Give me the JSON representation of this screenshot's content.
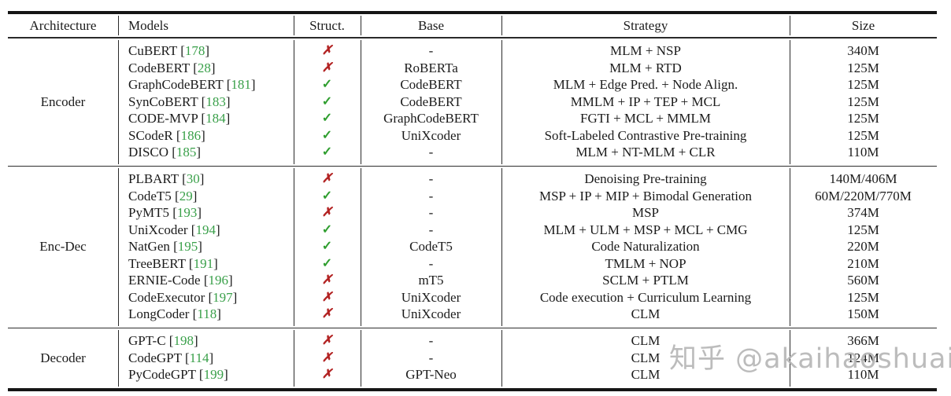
{
  "table": {
    "headers": {
      "architecture": "Architecture",
      "models": "Models",
      "struct": "Struct.",
      "base": "Base",
      "strategy": "Strategy",
      "size": "Size"
    },
    "sections": [
      {
        "architecture": "Encoder",
        "rows": [
          {
            "model": "CuBERT",
            "ref": "178",
            "struct": "✗",
            "base": "-",
            "strategy": "MLM + NSP",
            "size": "340M"
          },
          {
            "model": "CodeBERT",
            "ref": "28",
            "struct": "✗",
            "base": "RoBERTa",
            "strategy": "MLM + RTD",
            "size": "125M"
          },
          {
            "model": "GraphCodeBERT",
            "ref": "181",
            "struct": "✓",
            "base": "CodeBERT",
            "strategy": "MLM + Edge Pred. + Node Align.",
            "size": "125M"
          },
          {
            "model": "SynCoBERT",
            "ref": "183",
            "struct": "✓",
            "base": "CodeBERT",
            "strategy": "MMLM + IP + TEP + MCL",
            "size": "125M"
          },
          {
            "model": "CODE-MVP",
            "ref": "184",
            "struct": "✓",
            "base": "GraphCodeBERT",
            "strategy": "FGTI + MCL + MMLM",
            "size": "125M"
          },
          {
            "model": "SCodeR",
            "ref": "186",
            "struct": "✓",
            "base": "UniXcoder",
            "strategy": "Soft-Labeled Contrastive Pre-training",
            "size": "125M"
          },
          {
            "model": "DISCO",
            "ref": "185",
            "struct": "✓",
            "base": "-",
            "strategy": "MLM + NT-MLM + CLR",
            "size": "110M"
          }
        ]
      },
      {
        "architecture": "Enc-Dec",
        "rows": [
          {
            "model": "PLBART",
            "ref": "30",
            "struct": "✗",
            "base": "-",
            "strategy": "Denoising Pre-training",
            "size": "140M/406M"
          },
          {
            "model": "CodeT5",
            "ref": "29",
            "struct": "✓",
            "base": "-",
            "strategy": "MSP + IP + MIP + Bimodal Generation",
            "size": "60M/220M/770M"
          },
          {
            "model": "PyMT5",
            "ref": "193",
            "struct": "✗",
            "base": "-",
            "strategy": "MSP",
            "size": "374M"
          },
          {
            "model": "UniXcoder",
            "ref": "194",
            "struct": "✓",
            "base": "-",
            "strategy": "MLM + ULM + MSP + MCL + CMG",
            "size": "125M"
          },
          {
            "model": "NatGen",
            "ref": "195",
            "struct": "✓",
            "base": "CodeT5",
            "strategy": "Code Naturalization",
            "size": "220M"
          },
          {
            "model": "TreeBERT",
            "ref": "191",
            "struct": "✓",
            "base": "-",
            "strategy": "TMLM + NOP",
            "size": "210M"
          },
          {
            "model": "ERNIE-Code",
            "ref": "196",
            "struct": "✗",
            "base": "mT5",
            "strategy": "SCLM + PTLM",
            "size": "560M"
          },
          {
            "model": "CodeExecutor",
            "ref": "197",
            "struct": "✗",
            "base": "UniXcoder",
            "strategy": "Code execution + Curriculum Learning",
            "size": "125M"
          },
          {
            "model": "LongCoder",
            "ref": "118",
            "struct": "✗",
            "base": "UniXcoder",
            "strategy": "CLM",
            "size": "150M"
          }
        ]
      },
      {
        "architecture": "Decoder",
        "rows": [
          {
            "model": "GPT-C",
            "ref": "198",
            "struct": "✗",
            "base": "-",
            "strategy": "CLM",
            "size": "366M"
          },
          {
            "model": "CodeGPT",
            "ref": "114",
            "struct": "✗",
            "base": "-",
            "strategy": "CLM",
            "size": "124M"
          },
          {
            "model": "PyCodeGPT",
            "ref": "199",
            "struct": "✗",
            "base": "GPT-Neo",
            "strategy": "CLM",
            "size": "110M"
          }
        ]
      }
    ]
  },
  "watermark": {
    "text": "知乎 @akaihaoshuai"
  },
  "colors": {
    "ref_green": "#3aa04a",
    "check_green": "#2f9e2f",
    "cross_red": "#b22222"
  }
}
